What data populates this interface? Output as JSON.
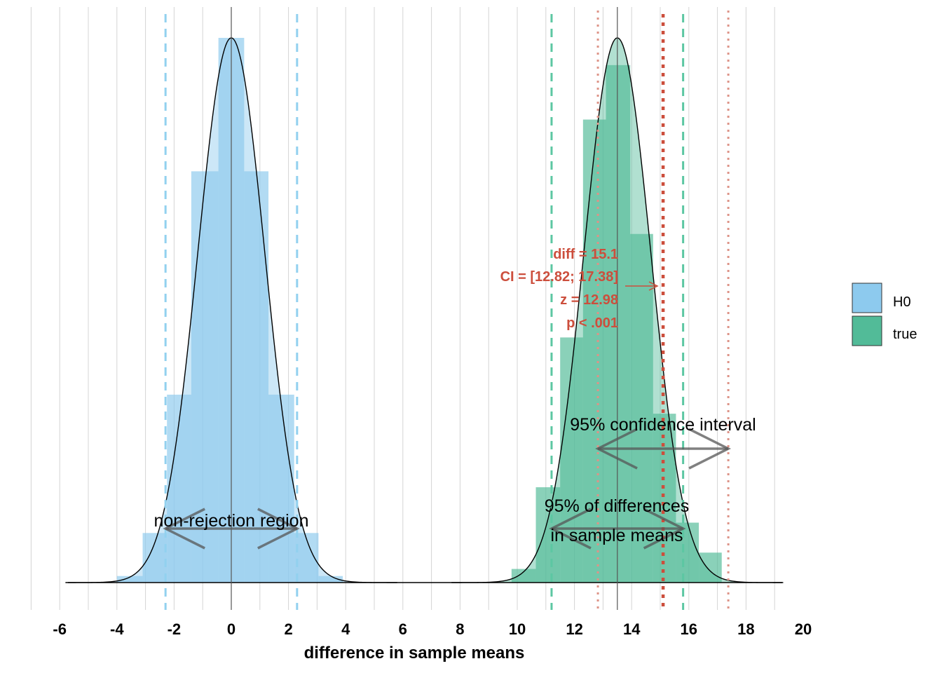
{
  "chart_data": {
    "type": "bar",
    "xlabel": "difference in sample means",
    "xlim": [
      -7,
      20.5
    ],
    "x_ticks": [
      -6,
      -4,
      -2,
      0,
      2,
      4,
      6,
      8,
      10,
      12,
      14,
      16,
      18,
      20
    ],
    "x_tick_labels": [
      "-6",
      "-4",
      "-2",
      "0",
      "2",
      "4",
      "6",
      "8",
      "10",
      "12",
      "14",
      "16",
      "18",
      "20"
    ],
    "grid_minor_step": 1,
    "legend": {
      "placement": "right",
      "entries": [
        {
          "label": "H0",
          "color": "#8DCAEE"
        },
        {
          "label": "true",
          "color": "#52BB98"
        }
      ]
    },
    "series": [
      {
        "name": "H0",
        "color": "#8DCAEE",
        "center": 0,
        "sd": 1.17,
        "bins": [
          {
            "x0": -4.0,
            "x1": -3.1,
            "h": 0.012
          },
          {
            "x0": -3.1,
            "x1": -2.25,
            "h": 0.091
          },
          {
            "x0": -2.25,
            "x1": -1.4,
            "h": 0.345
          },
          {
            "x0": -1.4,
            "x1": -0.45,
            "h": 0.755
          },
          {
            "x0": -0.45,
            "x1": 0.45,
            "h": 1.0
          },
          {
            "x0": 0.45,
            "x1": 1.3,
            "h": 0.755
          },
          {
            "x0": 1.3,
            "x1": 2.2,
            "h": 0.345
          },
          {
            "x0": 2.2,
            "x1": 3.05,
            "h": 0.091
          },
          {
            "x0": 3.05,
            "x1": 3.9,
            "h": 0.012
          }
        ],
        "interval_lines": [
          -2.3,
          2.3
        ],
        "mean_line": 0
      },
      {
        "name": "true",
        "color": "#52BB98",
        "center": 13.5,
        "sd": 1.17,
        "bins": [
          {
            "x0": 9.8,
            "x1": 10.65,
            "h": 0.025
          },
          {
            "x0": 10.65,
            "x1": 11.5,
            "h": 0.175
          },
          {
            "x0": 11.5,
            "x1": 12.3,
            "h": 0.45
          },
          {
            "x0": 12.3,
            "x1": 13.1,
            "h": 0.85
          },
          {
            "x0": 13.1,
            "x1": 13.95,
            "h": 0.95
          },
          {
            "x0": 13.95,
            "x1": 14.75,
            "h": 0.64
          },
          {
            "x0": 14.75,
            "x1": 15.55,
            "h": 0.31
          },
          {
            "x0": 15.55,
            "x1": 16.35,
            "h": 0.11
          },
          {
            "x0": 16.35,
            "x1": 17.15,
            "h": 0.055
          }
        ],
        "interval_lines": [
          11.2,
          15.8
        ],
        "mean_line": 13.5
      }
    ],
    "observed": {
      "diff": 15.1,
      "ci": [
        12.82,
        17.38
      ],
      "color": "#CC4E3C"
    },
    "annotations": {
      "non_rejection_region": "non-rejection region",
      "sampling_range_line1": "95% of differences",
      "sampling_range_line2": "in sample means",
      "confidence_interval": "95% confidence interval"
    },
    "stats_text": {
      "diff": "diff = 15.1",
      "ci": "CI = [12.82; 17.38]",
      "z": "z = 12.98",
      "p": "p < .001"
    }
  }
}
